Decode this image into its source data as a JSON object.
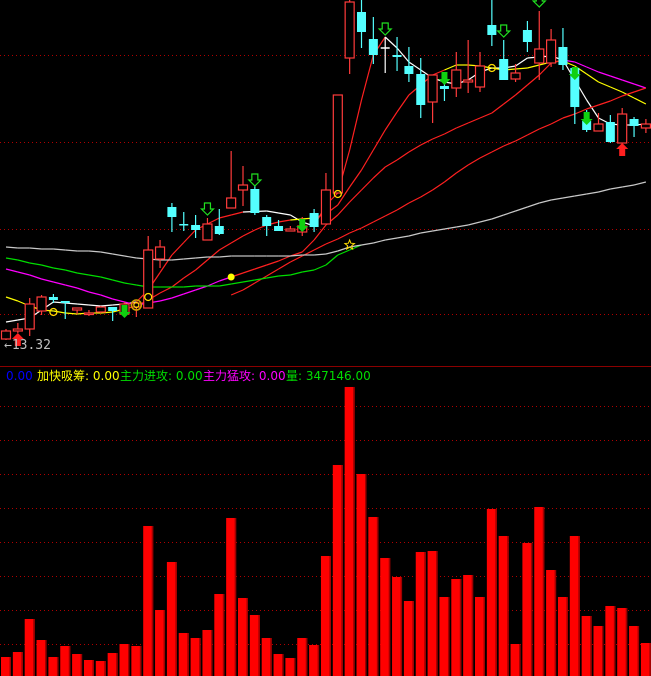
{
  "colors": {
    "background": "#000000",
    "up_candle": "#ff3b3b",
    "down_candle": "#54ffff",
    "flat_candle": "#ffffff",
    "volume_bar": "#ff0000",
    "grid": "#b00000",
    "separator": "#8b0000"
  },
  "price_low_label": {
    "arrow": "←",
    "value": "13.32"
  },
  "legend": [
    {
      "label": "",
      "value": "0.00",
      "color": "#0000ff"
    },
    {
      "label": "加快吸筹",
      "value": "0.00",
      "color": "#ffff00"
    },
    {
      "label": "主力进攻",
      "value": "0.00",
      "color": "#00dd00"
    },
    {
      "label": "主力猛攻",
      "value": "0.00",
      "color": "#ff00ff"
    },
    {
      "label": "量",
      "value": "347146.00",
      "color": "#00dd00"
    }
  ],
  "chart_data": [
    {
      "type": "candlestick",
      "price_range": [
        12.8,
        20.12
      ],
      "grid": true,
      "candles_ohlc": [
        [
          13.34,
          13.54,
          13.32,
          13.5
        ],
        [
          13.5,
          13.66,
          13.46,
          13.54
        ],
        [
          13.54,
          14.16,
          13.4,
          14.04
        ],
        [
          13.9,
          14.22,
          13.82,
          14.18
        ],
        [
          14.18,
          14.24,
          14.06,
          14.12
        ],
        [
          14.1,
          14.1,
          13.74,
          14.06
        ],
        [
          13.92,
          13.96,
          13.84,
          13.96
        ],
        [
          13.84,
          13.92,
          13.8,
          13.86
        ],
        [
          13.88,
          14.0,
          13.86,
          13.98
        ],
        [
          13.98,
          13.98,
          13.7,
          13.9
        ],
        [
          13.84,
          14.08,
          13.78,
          14.04
        ],
        [
          13.98,
          14.08,
          13.78,
          14.06
        ],
        [
          13.96,
          15.4,
          13.96,
          15.12
        ],
        [
          14.94,
          15.32,
          14.76,
          15.18
        ],
        [
          15.98,
          16.06,
          15.48,
          15.78
        ],
        [
          15.64,
          15.88,
          15.5,
          15.62
        ],
        [
          15.62,
          15.82,
          15.36,
          15.52
        ],
        [
          15.32,
          15.76,
          15.32,
          15.64
        ],
        [
          15.6,
          15.94,
          15.42,
          15.44
        ],
        [
          15.96,
          17.1,
          15.96,
          16.16
        ],
        [
          16.32,
          16.8,
          16.0,
          16.42
        ],
        [
          16.34,
          16.4,
          15.82,
          15.86
        ],
        [
          15.78,
          15.82,
          15.4,
          15.6
        ],
        [
          15.6,
          15.72,
          15.5,
          15.5
        ],
        [
          15.5,
          15.6,
          15.5,
          15.54
        ],
        [
          15.48,
          15.78,
          15.4,
          15.6
        ],
        [
          15.86,
          15.94,
          15.48,
          15.58
        ],
        [
          15.64,
          16.66,
          15.64,
          16.32
        ],
        [
          16.26,
          18.22,
          16.26,
          18.22
        ],
        [
          18.96,
          20.12,
          18.64,
          20.08
        ],
        [
          19.88,
          20.12,
          19.16,
          19.48
        ],
        [
          19.34,
          19.78,
          18.84,
          19.02
        ],
        [
          19.16,
          19.38,
          18.66,
          19.16
        ],
        [
          19.02,
          19.38,
          18.7,
          18.98
        ],
        [
          18.8,
          19.18,
          18.48,
          18.64
        ],
        [
          18.64,
          18.96,
          17.76,
          18.02
        ],
        [
          18.08,
          18.62,
          17.66,
          18.62
        ],
        [
          18.4,
          18.68,
          18.1,
          18.34
        ],
        [
          18.36,
          19.08,
          18.18,
          18.72
        ],
        [
          18.48,
          19.32,
          18.26,
          18.52
        ],
        [
          18.38,
          19.08,
          18.28,
          18.8
        ],
        [
          19.62,
          20.12,
          19.2,
          19.42
        ],
        [
          18.94,
          19.32,
          18.52,
          18.52
        ],
        [
          18.54,
          18.84,
          18.48,
          18.66
        ],
        [
          19.52,
          19.7,
          19.08,
          19.28
        ],
        [
          18.86,
          19.9,
          18.52,
          19.14
        ],
        [
          18.86,
          19.54,
          18.78,
          19.32
        ],
        [
          19.18,
          19.56,
          18.72,
          18.82
        ],
        [
          18.76,
          18.76,
          17.64,
          17.98
        ],
        [
          17.7,
          17.92,
          17.48,
          17.52
        ],
        [
          17.5,
          17.86,
          17.5,
          17.64
        ],
        [
          17.68,
          17.82,
          17.26,
          17.28
        ],
        [
          17.26,
          17.96,
          17.26,
          17.84
        ],
        [
          17.74,
          17.78,
          17.38,
          17.6
        ],
        [
          17.56,
          17.74,
          17.46,
          17.64
        ]
      ],
      "moving_averages": [
        {
          "color": "#ffffff",
          "alt_color": "#ff2020",
          "alt_ranges": [
            [
              11,
              20
            ],
            [
              26,
              32
            ]
          ],
          "values": [
            13.68,
            13.72,
            13.76,
            13.92,
            14.08,
            14.06,
            14.04,
            14.02,
            14.0,
            14.02,
            14.04,
            14.08,
            14.32,
            14.67,
            15.02,
            15.27,
            15.52,
            15.64,
            15.76,
            15.82,
            15.88,
            15.89,
            15.9,
            15.86,
            15.82,
            15.68,
            15.6,
            16.02,
            16.26,
            17.12,
            18.12,
            19.02,
            19.38,
            19.16,
            18.88,
            18.72,
            18.56,
            18.48,
            18.44,
            18.52,
            18.68,
            18.76,
            18.76,
            18.8,
            18.96,
            18.98,
            19.0,
            18.92,
            18.52,
            18.12,
            17.76,
            17.64,
            17.62,
            17.62,
            17.64
          ]
        },
        {
          "color": "#ffff00",
          "alt_color": "#ff2020",
          "alt_ranges": [
            [
              10,
              24
            ],
            [
              26,
              37
            ]
          ],
          "values": [
            14.18,
            14.1,
            14.0,
            13.92,
            13.9,
            13.86,
            13.84,
            13.86,
            13.86,
            13.88,
            13.94,
            14.0,
            14.12,
            14.26,
            14.38,
            14.56,
            14.72,
            14.92,
            15.12,
            15.26,
            15.4,
            15.52,
            15.62,
            15.68,
            15.72,
            15.74,
            15.76,
            15.84,
            16.02,
            16.38,
            16.72,
            17.12,
            17.52,
            17.88,
            18.22,
            18.42,
            18.62,
            18.72,
            18.82,
            18.82,
            18.8,
            18.76,
            18.72,
            18.74,
            18.76,
            18.82,
            18.88,
            18.9,
            18.8,
            18.64,
            18.48,
            18.38,
            18.28,
            18.16,
            18.04
          ]
        },
        {
          "color": "#ff00ff",
          "alt_color": "#ff2020",
          "alt_ranges": [
            [
              19,
              47
            ]
          ],
          "values": [
            14.74,
            14.68,
            14.62,
            14.54,
            14.48,
            14.42,
            14.36,
            14.28,
            14.22,
            14.14,
            14.08,
            14.02,
            14.06,
            14.1,
            14.16,
            14.24,
            14.32,
            14.4,
            14.5,
            14.58,
            14.66,
            14.74,
            14.82,
            14.9,
            15.0,
            15.08,
            15.32,
            15.62,
            15.82,
            16.08,
            16.32,
            16.56,
            16.78,
            16.92,
            17.08,
            17.22,
            17.34,
            17.44,
            17.56,
            17.66,
            17.76,
            17.86,
            18.04,
            18.22,
            18.42,
            18.62,
            18.86,
            18.92,
            18.88,
            18.78,
            18.68,
            18.6,
            18.52,
            18.44,
            18.36
          ]
        },
        {
          "color": "#ff2020",
          "start_index": 19,
          "values": [
            14.22,
            14.32,
            14.46,
            14.6,
            14.74,
            14.88,
            15.0,
            15.12,
            15.24,
            15.34,
            15.46,
            15.56,
            15.68,
            15.8,
            15.92,
            16.06,
            16.18,
            16.32,
            16.48,
            16.66,
            16.82,
            16.96,
            17.08,
            17.2,
            17.3,
            17.42,
            17.54,
            17.64,
            17.76,
            17.84,
            17.94,
            18.02,
            18.1,
            18.2,
            18.28,
            18.36
          ]
        },
        {
          "color": "#00dd00",
          "values": [
            14.96,
            14.92,
            14.86,
            14.82,
            14.76,
            14.72,
            14.66,
            14.62,
            14.58,
            14.52,
            14.46,
            14.42,
            14.38,
            14.38,
            14.38,
            14.38,
            14.4,
            14.4,
            14.4,
            14.44,
            14.48,
            14.52,
            14.56,
            14.6,
            14.62,
            14.68,
            14.72,
            14.82,
            15.02,
            15.12,
            15.22
          ]
        },
        {
          "color": "#c8c8c8",
          "values": [
            15.18,
            15.16,
            15.16,
            15.14,
            15.14,
            15.12,
            15.1,
            15.1,
            15.08,
            15.04,
            15.0,
            14.96,
            14.94,
            14.92,
            14.92,
            14.94,
            14.96,
            14.98,
            14.98,
            15.0,
            15.0,
            15.0,
            15.0,
            15.0,
            15.0,
            15.02,
            15.02,
            15.04,
            15.1,
            15.18,
            15.22,
            15.26,
            15.32,
            15.36,
            15.4,
            15.46,
            15.5,
            15.54,
            15.58,
            15.62,
            15.68,
            15.74,
            15.82,
            15.9,
            15.98,
            16.06,
            16.12,
            16.16,
            16.2,
            16.24,
            16.28,
            16.34,
            16.38,
            16.42,
            16.48
          ]
        }
      ],
      "signals": [
        {
          "index": 1,
          "type": "red-up-arrow",
          "price": 13.46
        },
        {
          "index": 52,
          "type": "red-up-arrow",
          "price": 17.26
        },
        {
          "index": 10,
          "type": "green-down-arrow",
          "price": 13.76
        },
        {
          "index": 25,
          "type": "green-down-arrow",
          "price": 15.48
        },
        {
          "index": 37,
          "type": "green-down-arrow",
          "price": 18.42
        },
        {
          "index": 48,
          "type": "green-down-arrow",
          "price": 18.52
        },
        {
          "index": 49,
          "type": "green-down-arrow",
          "price": 17.62
        },
        {
          "index": 17,
          "type": "hollow-down-arrow",
          "price": 15.82
        },
        {
          "index": 21,
          "type": "hollow-down-arrow",
          "price": 16.4
        },
        {
          "index": 32,
          "type": "hollow-down-arrow",
          "price": 19.42
        },
        {
          "index": 42,
          "type": "hollow-down-arrow",
          "price": 19.38
        },
        {
          "index": 45,
          "type": "hollow-down-arrow",
          "price": 19.98
        },
        {
          "index": 4,
          "type": "yellow-circle",
          "price": 13.88
        },
        {
          "index": 12,
          "type": "yellow-circle",
          "price": 14.18
        },
        {
          "index": 28,
          "type": "yellow-circle",
          "price": 16.24
        },
        {
          "index": 41,
          "type": "yellow-circle",
          "price": 18.76
        },
        {
          "index": 11,
          "type": "yellow-double-circle",
          "price": 14.02
        },
        {
          "index": 19,
          "type": "yellow-dot",
          "price": 14.58
        },
        {
          "index": 29,
          "type": "yellow-star",
          "price": 15.22
        }
      ]
    },
    {
      "type": "bar",
      "series_label": "量",
      "values": [
        199900,
        252500,
        599600,
        378700,
        199900,
        315600,
        231400,
        168300,
        157800,
        242000,
        336600,
        315600,
        1578000,
        694300,
        1199300,
        452400,
        399800,
        483900,
        862600,
        1662200,
        820600,
        641700,
        399800,
        231400,
        189400,
        399800,
        326100,
        1262400,
        2219700,
        3040300,
        2125000,
        1672700,
        1241400,
        1041500,
        789000,
        1304500,
        1315000,
        831100,
        1020400,
        1062500,
        831100,
        1756800,
        1472800,
        336600,
        1399200,
        1777900,
        1115100,
        831100,
        1472800,
        631200,
        526000,
        736400,
        715400,
        526000,
        347146
      ],
      "ylim": [
        0,
        3261000
      ],
      "grid": true
    }
  ]
}
